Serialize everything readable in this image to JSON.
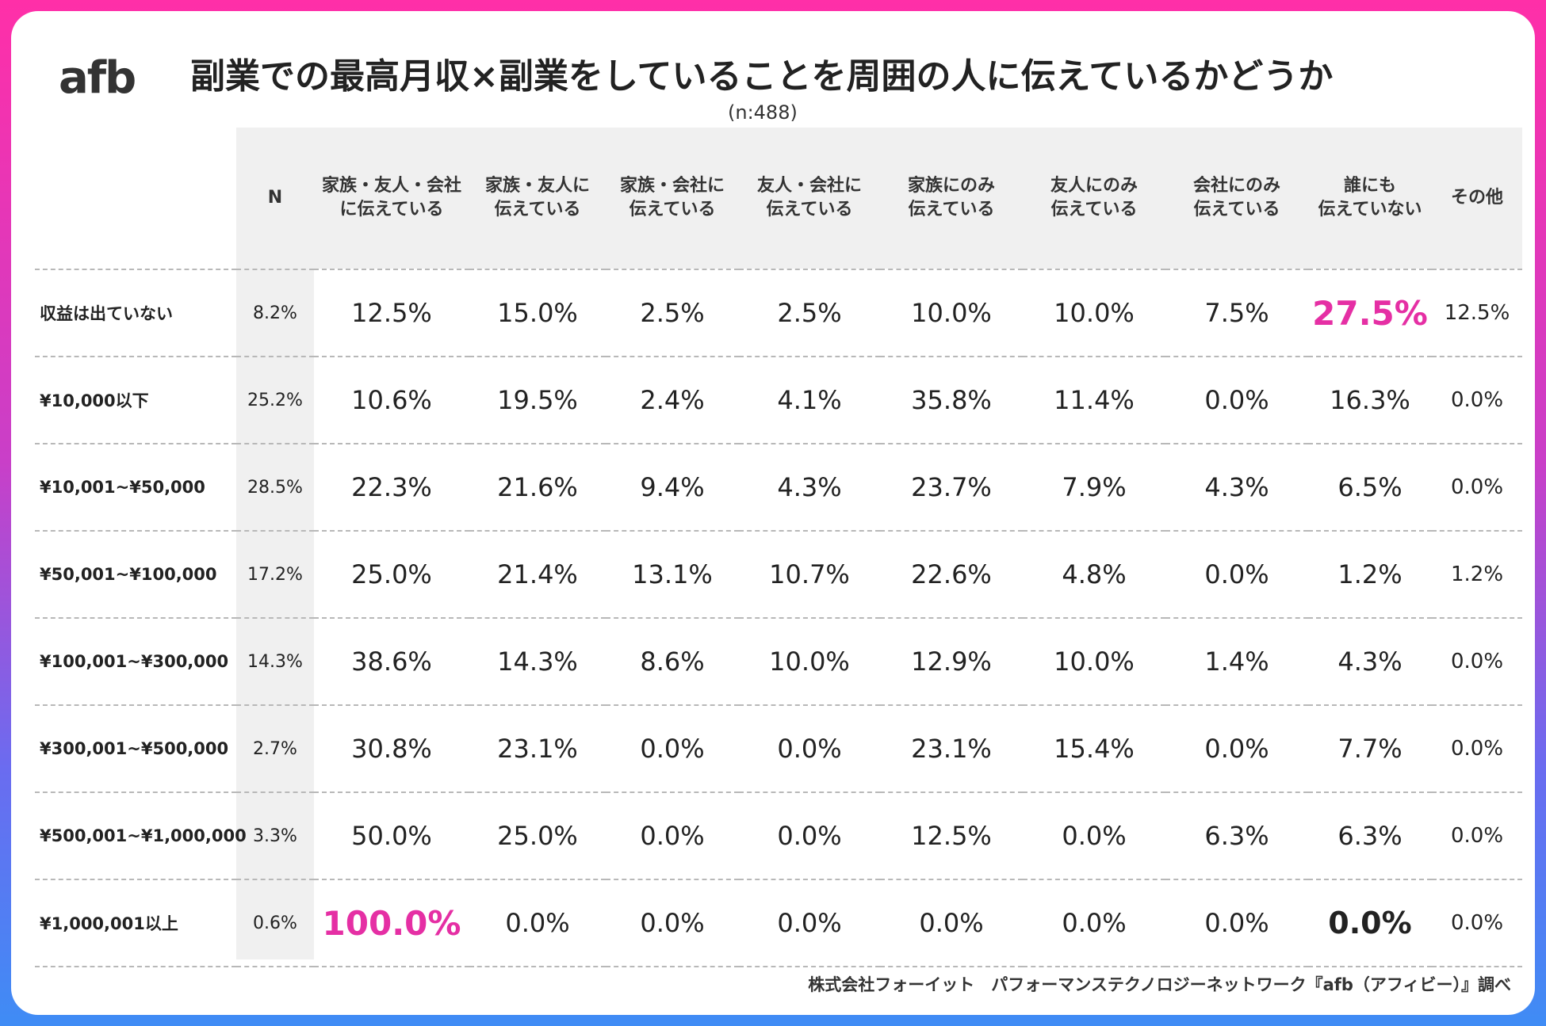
{
  "logo": "afb",
  "title": "副業での最高月収×副業をしていることを周囲の人に伝えているかどうか",
  "subtitle": "(n:488)",
  "source": "株式会社フォーイット　パフォーマンステクノロジーネットワーク『afb（アフィビー）』調べ",
  "colors": {
    "highlight": "#e52fa4",
    "frame_top": "#ff2fa8",
    "frame_bottom": "#3f8cf5"
  },
  "chart_data": {
    "type": "table",
    "title": "副業での最高月収×副業をしていることを周囲の人に伝えているかどうか",
    "columns": [
      {
        "line1": "N",
        "line2": ""
      },
      {
        "line1": "家族・友人・会社",
        "line2": "に伝えている"
      },
      {
        "line1": "家族・友人に",
        "line2": "伝えている"
      },
      {
        "line1": "家族・会社に",
        "line2": "伝えている"
      },
      {
        "line1": "友人・会社に",
        "line2": "伝えている"
      },
      {
        "line1": "家族にのみ",
        "line2": "伝えている"
      },
      {
        "line1": "友人にのみ",
        "line2": "伝えている"
      },
      {
        "line1": "会社にのみ",
        "line2": "伝えている"
      },
      {
        "line1": "誰にも",
        "line2": "伝えていない"
      },
      {
        "line1": "その他",
        "line2": ""
      }
    ],
    "rows": [
      {
        "label": "収益は出ていない",
        "values": [
          "8.2%",
          "12.5%",
          "15.0%",
          "2.5%",
          "2.5%",
          "10.0%",
          "10.0%",
          "7.5%",
          "27.5%",
          "12.5%"
        ]
      },
      {
        "label": "¥10,000以下",
        "values": [
          "25.2%",
          "10.6%",
          "19.5%",
          "2.4%",
          "4.1%",
          "35.8%",
          "11.4%",
          "0.0%",
          "16.3%",
          "0.0%"
        ]
      },
      {
        "label": "¥10,001~¥50,000",
        "values": [
          "28.5%",
          "22.3%",
          "21.6%",
          "9.4%",
          "4.3%",
          "23.7%",
          "7.9%",
          "4.3%",
          "6.5%",
          "0.0%"
        ]
      },
      {
        "label": "¥50,001~¥100,000",
        "values": [
          "17.2%",
          "25.0%",
          "21.4%",
          "13.1%",
          "10.7%",
          "22.6%",
          "4.8%",
          "0.0%",
          "1.2%",
          "1.2%"
        ]
      },
      {
        "label": "¥100,001~¥300,000",
        "values": [
          "14.3%",
          "38.6%",
          "14.3%",
          "8.6%",
          "10.0%",
          "12.9%",
          "10.0%",
          "1.4%",
          "4.3%",
          "0.0%"
        ]
      },
      {
        "label": "¥300,001~¥500,000",
        "values": [
          "2.7%",
          "30.8%",
          "23.1%",
          "0.0%",
          "0.0%",
          "23.1%",
          "15.4%",
          "0.0%",
          "7.7%",
          "0.0%"
        ]
      },
      {
        "label": "¥500,001~¥1,000,000",
        "values": [
          "3.3%",
          "50.0%",
          "25.0%",
          "0.0%",
          "0.0%",
          "12.5%",
          "0.0%",
          "6.3%",
          "6.3%",
          "0.0%"
        ]
      },
      {
        "label": "¥1,000,001以上",
        "values": [
          "0.6%",
          "100.0%",
          "0.0%",
          "0.0%",
          "0.0%",
          "0.0%",
          "0.0%",
          "0.0%",
          "0.0%",
          "0.0%"
        ]
      }
    ],
    "highlights": [
      {
        "row": 0,
        "col": 8,
        "style": "pink"
      },
      {
        "row": 7,
        "col": 1,
        "style": "pink"
      },
      {
        "row": 7,
        "col": 8,
        "style": "bold"
      }
    ]
  }
}
